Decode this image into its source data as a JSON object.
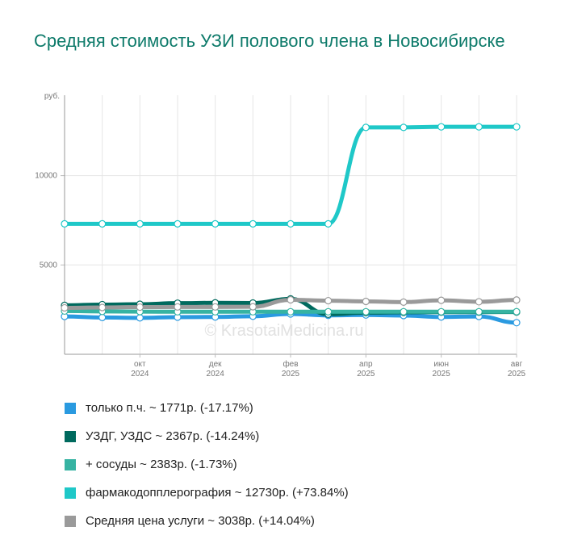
{
  "chart_data": {
    "type": "line",
    "title": "Средняя стоимость УЗИ полового члена в Новосибирске",
    "y_unit": "руб.",
    "ylim": [
      0,
      14500
    ],
    "y_ticks": [
      5000,
      10000
    ],
    "y_tick_labels": [
      "5000",
      "10000"
    ],
    "x": [
      "2024-08",
      "2024-09",
      "2024-10",
      "2024-11",
      "2024-12",
      "2025-01",
      "2025-02",
      "2025-03",
      "2025-04",
      "2025-05",
      "2025-06",
      "2025-07",
      "2025-08"
    ],
    "x_ticks": [
      {
        "x": "2024-10",
        "month": "окт",
        "year": "2024"
      },
      {
        "x": "2024-12",
        "month": "дек",
        "year": "2024"
      },
      {
        "x": "2025-02",
        "month": "фев",
        "year": "2025"
      },
      {
        "x": "2025-04",
        "month": "апр",
        "year": "2025"
      },
      {
        "x": "2025-06",
        "month": "июн",
        "year": "2025"
      },
      {
        "x": "2025-08",
        "month": "авг",
        "year": "2025"
      }
    ],
    "grid": true,
    "legend_position": "bottom",
    "watermark": "© KrasotaiMedicina.ru",
    "series": [
      {
        "name": "только п.ч.",
        "color": "#2a9ae0",
        "values": [
          2120,
          2060,
          2040,
          2080,
          2090,
          2130,
          2260,
          2180,
          2200,
          2170,
          2090,
          2120,
          1771
        ],
        "legend": "только п.ч. ~ 1771р. (-17.17%)"
      },
      {
        "name": "УЗДГ, УЗДС",
        "color": "#006a5e",
        "values": [
          2740,
          2780,
          2800,
          2860,
          2880,
          2870,
          3100,
          2240,
          2330,
          2350,
          2360,
          2360,
          2367
        ],
        "legend": "УЗДГ, УЗДС ~ 2367р. (-14.24%)"
      },
      {
        "name": "+ сосуды",
        "color": "#36b3a2",
        "values": [
          2420,
          2400,
          2390,
          2380,
          2380,
          2380,
          2380,
          2380,
          2380,
          2380,
          2380,
          2380,
          2383
        ],
        "legend": "+ сосуды ~ 2383р. (-1.73%)"
      },
      {
        "name": "фармакодопплерография",
        "color": "#1fc8c8",
        "values": [
          7300,
          7300,
          7300,
          7300,
          7300,
          7300,
          7300,
          7300,
          12700,
          12700,
          12730,
          12730,
          12730
        ],
        "legend": "фармакодопплерография ~ 12730р. (+73.84%)"
      },
      {
        "name": "Средняя цена услуги",
        "color": "#9a9a9a",
        "values": [
          2600,
          2620,
          2640,
          2650,
          2650,
          2660,
          3050,
          3000,
          2960,
          2920,
          3020,
          2940,
          3038
        ],
        "legend": "Средняя цена услуги ~ 3038р. (+14.04%)"
      }
    ]
  }
}
